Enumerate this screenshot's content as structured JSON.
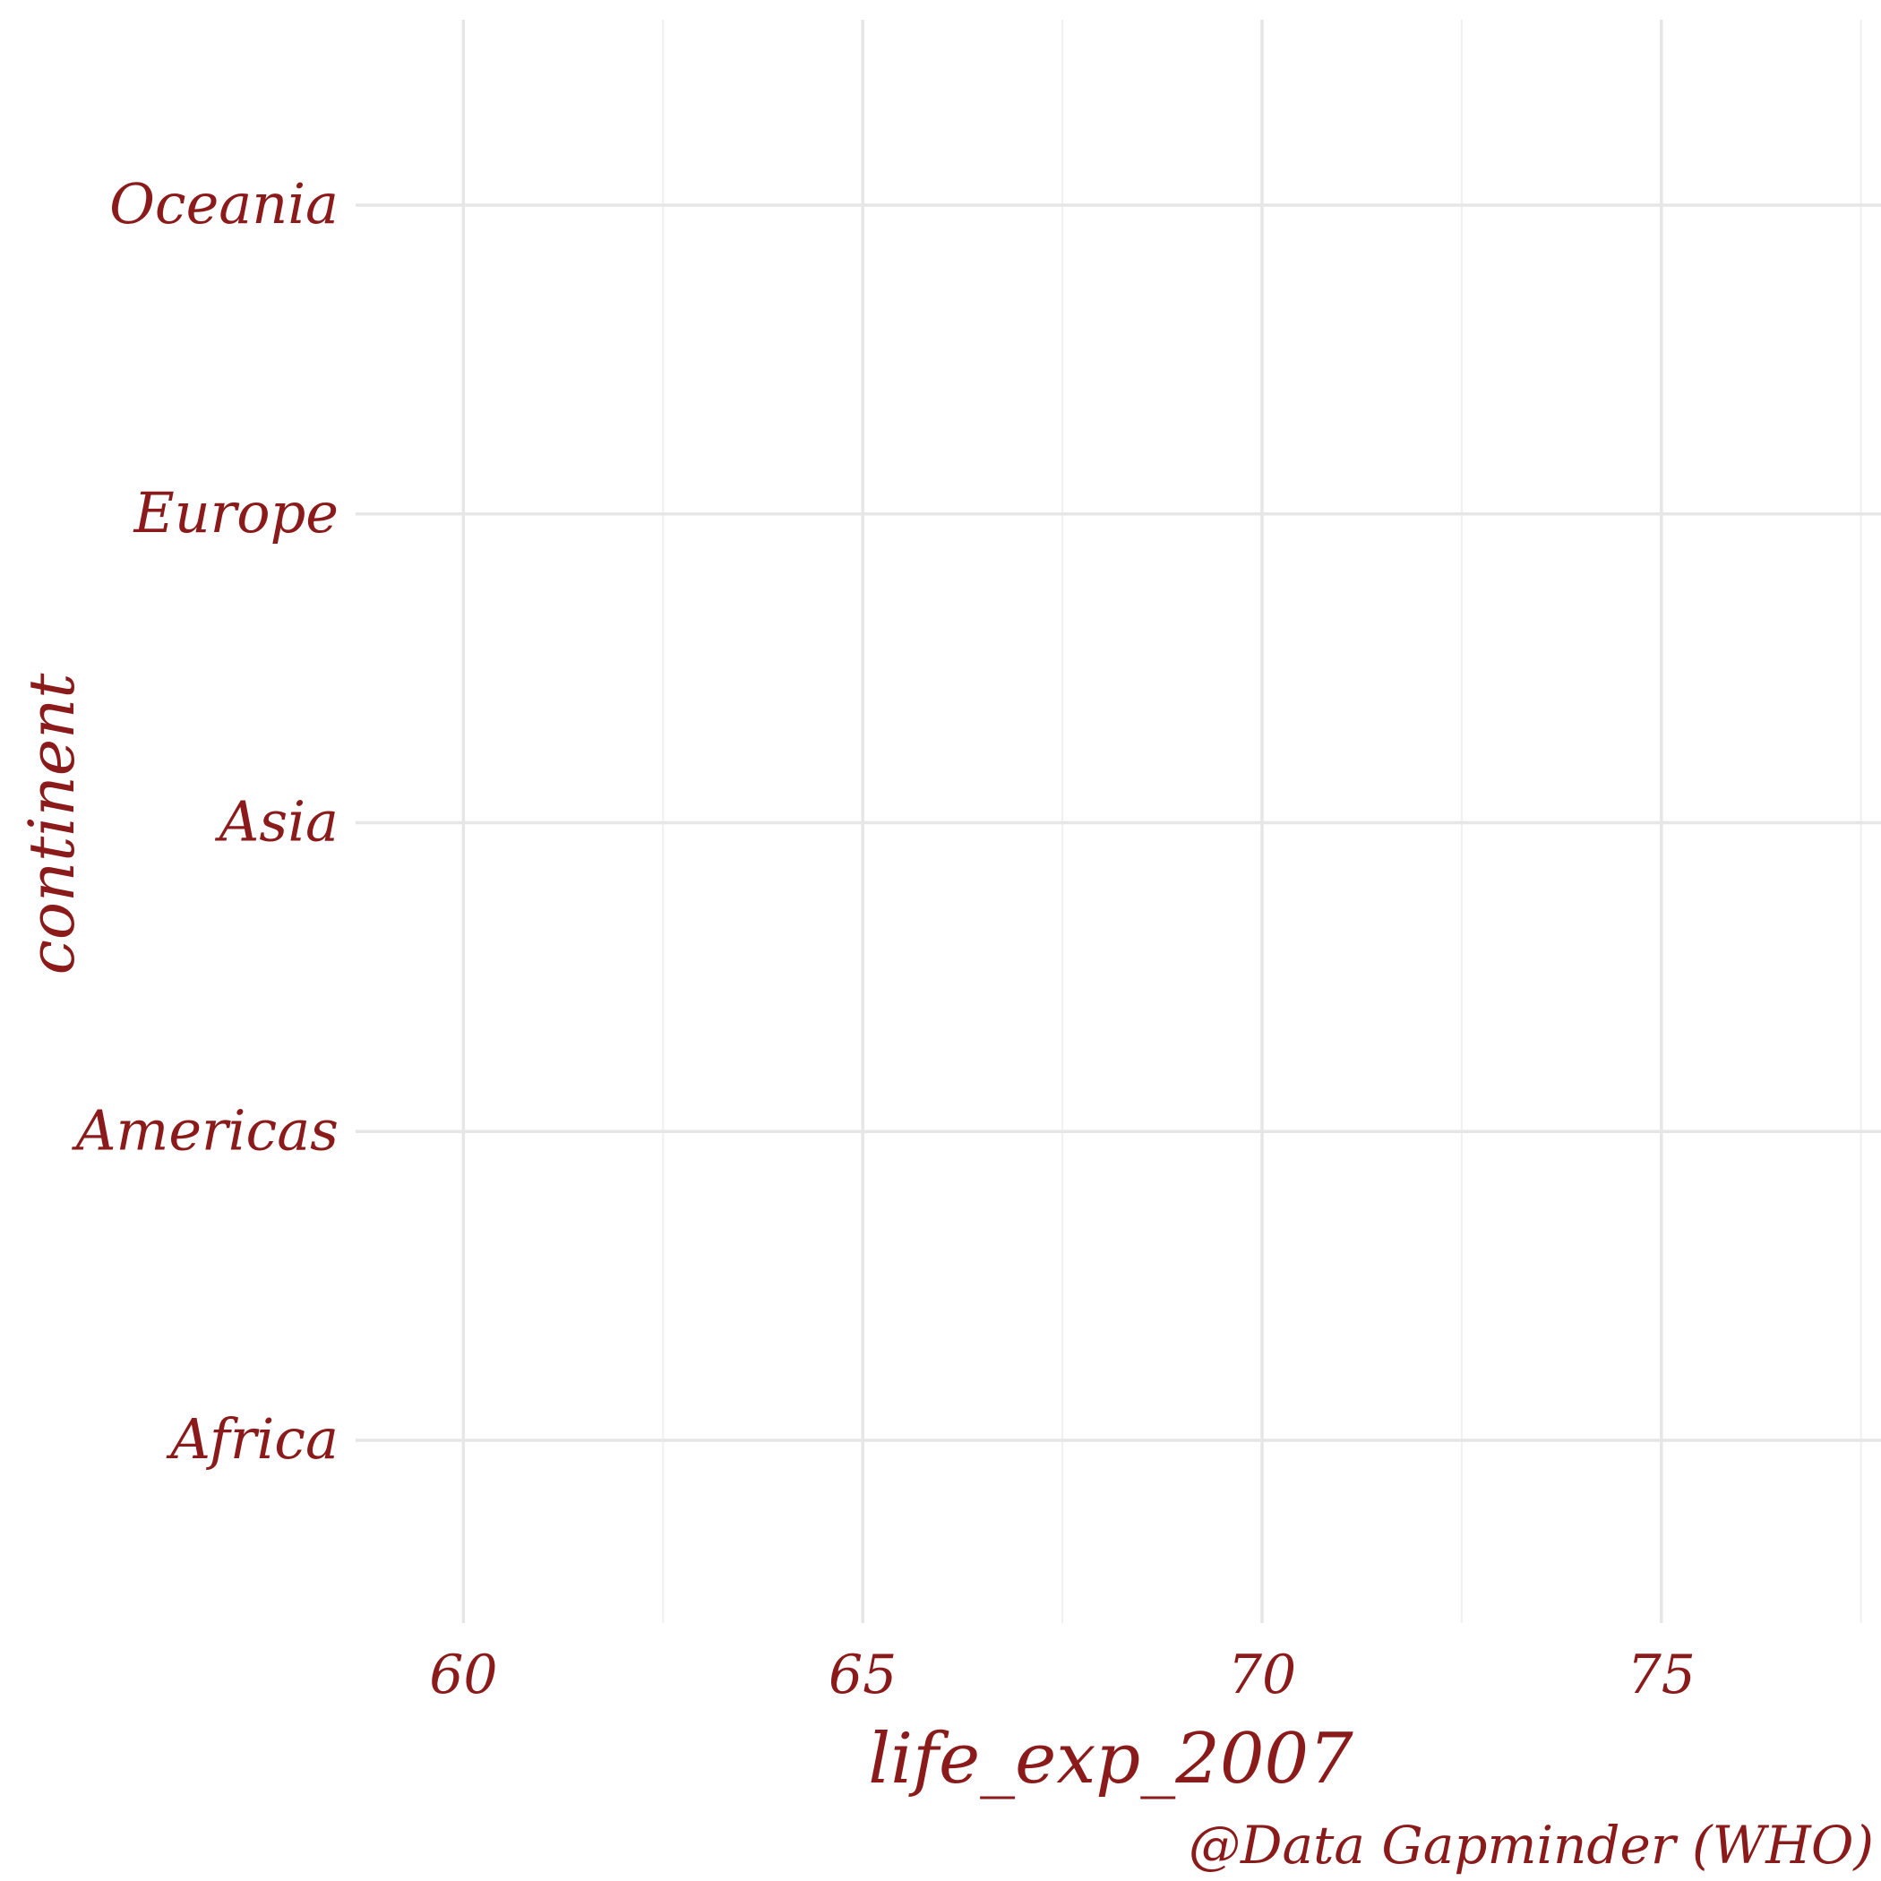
{
  "chart_data": {
    "type": "scatter",
    "title": "",
    "xlabel": "life_exp_2007",
    "ylabel": "continent",
    "caption": "@Data Gapminder (WHO)",
    "categories": [
      "Africa",
      "Americas",
      "Asia",
      "Europe",
      "Oceania"
    ],
    "x_ticks": [
      60,
      65,
      70,
      75
    ],
    "x_minor_ticks": [
      62.5,
      67.5,
      72.5,
      77.5
    ],
    "xlim": [
      58.65,
      77.75
    ],
    "series": [],
    "grid": true,
    "legend": "none",
    "colors": {
      "text": "#8b1a1a",
      "grid_major": "#e6e6e6",
      "grid_minor": "#f0f0f0",
      "background": "#ffffff"
    }
  }
}
